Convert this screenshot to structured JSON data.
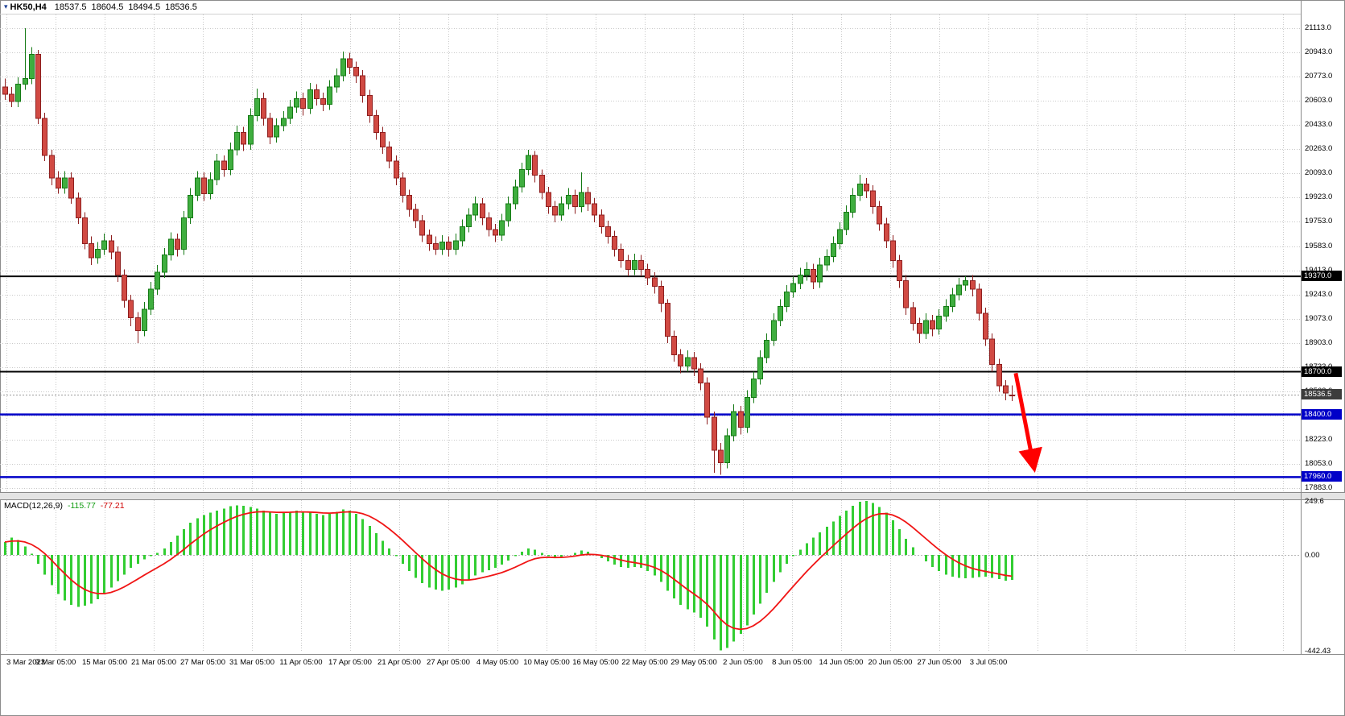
{
  "window": {
    "symbol": "HK50,H4",
    "open": "18537.5",
    "high": "18604.5",
    "low": "18494.5",
    "close": "18536.5"
  },
  "indicator": {
    "label": "MACD(12,26,9)",
    "macd_value": "-115.77",
    "signal_value": "-77.21"
  },
  "colors": {
    "up": "#3fae3f",
    "up_border": "#157a15",
    "down": "#d14a43",
    "down_border": "#8e1f1f",
    "hline_black": "#000000",
    "hline_blue": "#0000c8",
    "macd_hist": "#32cd32",
    "macd_signal": "#f01515",
    "grid": "#c9c9c9",
    "arrow": "#ff0000",
    "badge_current_bg": "#3c3c3c"
  },
  "chart_data": {
    "type": "candlestick_with_macd",
    "symbol": "HK50",
    "timeframe": "H4",
    "title": "HK50,H4 18537.5 18604.5 18494.5 18536.5",
    "price_range": [
      17860,
      21210
    ],
    "macd_range": [
      -442.43,
      249.6
    ],
    "current_price": 18536.5,
    "price_ticks": [
      "21113.0",
      "20943.0",
      "20773.0",
      "20603.0",
      "20433.0",
      "20263.0",
      "20093.0",
      "19923.0",
      "19753.0",
      "19583.0",
      "19413.0",
      "19243.0",
      "19073.0",
      "18903.0",
      "18733.0",
      "18563.0",
      "18393.0",
      "18223.0",
      "18053.0",
      "17883.0"
    ],
    "macd_ticks": [
      "249.6",
      "0.00",
      "-442.43"
    ],
    "time_labels": [
      "3 Mar 2023",
      "9 Mar 05:00",
      "15 Mar 05:00",
      "21 Mar 05:00",
      "27 Mar 05:00",
      "31 Mar 05:00",
      "11 Apr 05:00",
      "17 Apr 05:00",
      "21 Apr 05:00",
      "27 Apr 05:00",
      "4 May 05:00",
      "10 May 05:00",
      "16 May 05:00",
      "22 May 05:00",
      "29 May 05:00",
      "2 Jun 05:00",
      "8 Jun 05:00",
      "14 Jun 05:00",
      "20 Jun 05:00",
      "27 Jun 05:00",
      "3 Jul 05:00"
    ],
    "hlines": [
      {
        "price": 19370,
        "label": "19370.0",
        "color": "black"
      },
      {
        "price": 18700,
        "label": "18700.0",
        "color": "black"
      },
      {
        "price": 18400,
        "label": "18400.0",
        "color": "blue"
      },
      {
        "price": 17960,
        "label": "17960.0",
        "color": "blue"
      }
    ],
    "arrow": {
      "x1_bar": 152.6,
      "price1": 18690,
      "x2_bar": 155.3,
      "price2": 18040
    },
    "candles": [
      [
        20700,
        20760,
        20610,
        20650
      ],
      [
        20650,
        20700,
        20560,
        20600
      ],
      [
        20600,
        20770,
        20560,
        20720
      ],
      [
        20720,
        21113,
        20680,
        20760
      ],
      [
        20760,
        20980,
        20720,
        20930
      ],
      [
        20930,
        20960,
        20440,
        20480
      ],
      [
        20480,
        20520,
        20180,
        20220
      ],
      [
        20220,
        20260,
        20010,
        20060
      ],
      [
        20060,
        20110,
        19950,
        19990
      ],
      [
        19990,
        20110,
        19950,
        20060
      ],
      [
        20060,
        20100,
        19880,
        19920
      ],
      [
        19920,
        19960,
        19740,
        19780
      ],
      [
        19780,
        19820,
        19560,
        19600
      ],
      [
        19600,
        19650,
        19450,
        19500
      ],
      [
        19500,
        19610,
        19460,
        19560
      ],
      [
        19560,
        19670,
        19520,
        19620
      ],
      [
        19620,
        19660,
        19490,
        19540
      ],
      [
        19540,
        19580,
        19330,
        19380
      ],
      [
        19380,
        19420,
        19150,
        19200
      ],
      [
        19200,
        19240,
        19020,
        19080
      ],
      [
        19080,
        19120,
        18900,
        18990
      ],
      [
        18990,
        19190,
        18950,
        19140
      ],
      [
        19140,
        19330,
        19100,
        19280
      ],
      [
        19280,
        19450,
        19240,
        19400
      ],
      [
        19400,
        19570,
        19360,
        19520
      ],
      [
        19520,
        19680,
        19480,
        19630
      ],
      [
        19630,
        19670,
        19510,
        19560
      ],
      [
        19560,
        19830,
        19520,
        19780
      ],
      [
        19780,
        19990,
        19740,
        19940
      ],
      [
        19940,
        20110,
        19900,
        20060
      ],
      [
        20060,
        20100,
        19900,
        19950
      ],
      [
        19950,
        20100,
        19910,
        20050
      ],
      [
        20050,
        20230,
        20010,
        20180
      ],
      [
        20180,
        20220,
        20070,
        20120
      ],
      [
        20120,
        20310,
        20080,
        20260
      ],
      [
        20260,
        20430,
        20220,
        20380
      ],
      [
        20380,
        20420,
        20250,
        20300
      ],
      [
        20300,
        20550,
        20260,
        20500
      ],
      [
        20500,
        20690,
        20460,
        20620
      ],
      [
        20620,
        20660,
        20430,
        20480
      ],
      [
        20480,
        20520,
        20300,
        20350
      ],
      [
        20350,
        20480,
        20310,
        20430
      ],
      [
        20430,
        20530,
        20390,
        20480
      ],
      [
        20480,
        20610,
        20440,
        20560
      ],
      [
        20560,
        20670,
        20520,
        20620
      ],
      [
        20620,
        20660,
        20500,
        20550
      ],
      [
        20550,
        20730,
        20510,
        20680
      ],
      [
        20680,
        20720,
        20570,
        20620
      ],
      [
        20620,
        20660,
        20530,
        20580
      ],
      [
        20580,
        20750,
        20540,
        20700
      ],
      [
        20700,
        20830,
        20660,
        20780
      ],
      [
        20780,
        20950,
        20740,
        20900
      ],
      [
        20900,
        20940,
        20790,
        20840
      ],
      [
        20840,
        20880,
        20730,
        20780
      ],
      [
        20780,
        20820,
        20590,
        20640
      ],
      [
        20640,
        20680,
        20450,
        20500
      ],
      [
        20500,
        20540,
        20330,
        20380
      ],
      [
        20380,
        20420,
        20230,
        20280
      ],
      [
        20280,
        20320,
        20130,
        20180
      ],
      [
        20180,
        20220,
        20010,
        20060
      ],
      [
        20060,
        20100,
        19890,
        19940
      ],
      [
        19940,
        19980,
        19790,
        19840
      ],
      [
        19840,
        19880,
        19710,
        19760
      ],
      [
        19760,
        19800,
        19610,
        19660
      ],
      [
        19660,
        19700,
        19550,
        19600
      ],
      [
        19600,
        19650,
        19520,
        19560
      ],
      [
        19560,
        19660,
        19520,
        19610
      ],
      [
        19610,
        19650,
        19510,
        19560
      ],
      [
        19560,
        19670,
        19520,
        19620
      ],
      [
        19620,
        19770,
        19580,
        19720
      ],
      [
        19720,
        19850,
        19680,
        19800
      ],
      [
        19800,
        19930,
        19760,
        19880
      ],
      [
        19880,
        19920,
        19730,
        19780
      ],
      [
        19780,
        19820,
        19650,
        19700
      ],
      [
        19700,
        19740,
        19610,
        19660
      ],
      [
        19660,
        19810,
        19620,
        19760
      ],
      [
        19760,
        19930,
        19720,
        19880
      ],
      [
        19880,
        20050,
        19840,
        20000
      ],
      [
        20000,
        20170,
        19960,
        20120
      ],
      [
        20120,
        20260,
        20080,
        20220
      ],
      [
        20220,
        20250,
        20030,
        20080
      ],
      [
        20080,
        20120,
        19910,
        19960
      ],
      [
        19960,
        20000,
        19810,
        19860
      ],
      [
        19860,
        19900,
        19750,
        19800
      ],
      [
        19800,
        19930,
        19760,
        19880
      ],
      [
        19880,
        19990,
        19840,
        19940
      ],
      [
        19940,
        19980,
        19810,
        19860
      ],
      [
        19860,
        20100,
        19820,
        19960
      ],
      [
        19960,
        20000,
        19830,
        19880
      ],
      [
        19880,
        19920,
        19750,
        19800
      ],
      [
        19800,
        19840,
        19670,
        19720
      ],
      [
        19720,
        19760,
        19600,
        19650
      ],
      [
        19650,
        19690,
        19510,
        19560
      ],
      [
        19560,
        19600,
        19430,
        19480
      ],
      [
        19480,
        19520,
        19370,
        19420
      ],
      [
        19420,
        19530,
        19380,
        19480
      ],
      [
        19480,
        19520,
        19370,
        19420
      ],
      [
        19420,
        19460,
        19310,
        19360
      ],
      [
        19360,
        19400,
        19250,
        19300
      ],
      [
        19300,
        19340,
        19120,
        19180
      ],
      [
        19180,
        19210,
        18900,
        18950
      ],
      [
        18950,
        18990,
        18770,
        18820
      ],
      [
        18820,
        18860,
        18690,
        18740
      ],
      [
        18740,
        18850,
        18700,
        18800
      ],
      [
        18800,
        18840,
        18670,
        18720
      ],
      [
        18720,
        18760,
        18570,
        18620
      ],
      [
        18620,
        18660,
        18330,
        18380
      ],
      [
        18380,
        18420,
        17990,
        18150
      ],
      [
        18150,
        18200,
        17975,
        18060
      ],
      [
        18060,
        18300,
        18020,
        18250
      ],
      [
        18250,
        18470,
        18210,
        18420
      ],
      [
        18420,
        18460,
        18260,
        18310
      ],
      [
        18310,
        18570,
        18270,
        18520
      ],
      [
        18520,
        18700,
        18480,
        18650
      ],
      [
        18650,
        18850,
        18610,
        18800
      ],
      [
        18800,
        18970,
        18760,
        18920
      ],
      [
        18920,
        19110,
        18880,
        19060
      ],
      [
        19060,
        19210,
        19020,
        19160
      ],
      [
        19160,
        19310,
        19120,
        19260
      ],
      [
        19260,
        19370,
        19220,
        19320
      ],
      [
        19320,
        19430,
        19280,
        19380
      ],
      [
        19380,
        19470,
        19340,
        19420
      ],
      [
        19420,
        19460,
        19280,
        19330
      ],
      [
        19330,
        19500,
        19290,
        19450
      ],
      [
        19450,
        19560,
        19410,
        19510
      ],
      [
        19510,
        19650,
        19470,
        19600
      ],
      [
        19600,
        19750,
        19560,
        19700
      ],
      [
        19700,
        19870,
        19660,
        19820
      ],
      [
        19820,
        19990,
        19780,
        19940
      ],
      [
        19940,
        20085,
        19900,
        20020
      ],
      [
        20020,
        20060,
        19920,
        19970
      ],
      [
        19970,
        20010,
        19810,
        19860
      ],
      [
        19860,
        19900,
        19690,
        19740
      ],
      [
        19740,
        19780,
        19570,
        19620
      ],
      [
        19620,
        19660,
        19430,
        19480
      ],
      [
        19480,
        19520,
        19290,
        19340
      ],
      [
        19340,
        19380,
        19100,
        19150
      ],
      [
        19150,
        19190,
        18990,
        19040
      ],
      [
        19040,
        19080,
        18900,
        18970
      ],
      [
        18970,
        19110,
        18930,
        19060
      ],
      [
        19060,
        19100,
        18950,
        19000
      ],
      [
        19000,
        19140,
        18960,
        19090
      ],
      [
        19090,
        19210,
        19050,
        19160
      ],
      [
        19160,
        19290,
        19120,
        19240
      ],
      [
        19240,
        19360,
        19200,
        19310
      ],
      [
        19310,
        19372,
        19270,
        19340
      ],
      [
        19340,
        19380,
        19230,
        19280
      ],
      [
        19280,
        19320,
        19060,
        19110
      ],
      [
        19110,
        19150,
        18880,
        18930
      ],
      [
        18930,
        18970,
        18700,
        18750
      ],
      [
        18750,
        18790,
        18560,
        18600
      ],
      [
        18600,
        18640,
        18500,
        18550
      ],
      [
        18537.5,
        18604.5,
        18494.5,
        18536.5
      ]
    ],
    "macd": [
      60,
      80,
      70,
      40,
      5,
      -40,
      -90,
      -140,
      -180,
      -210,
      -230,
      -240,
      -235,
      -225,
      -205,
      -180,
      -150,
      -120,
      -90,
      -60,
      -40,
      -20,
      -5,
      10,
      30,
      60,
      90,
      120,
      150,
      170,
      185,
      195,
      205,
      215,
      225,
      230,
      228,
      222,
      215,
      205,
      195,
      190,
      195,
      200,
      205,
      200,
      195,
      190,
      185,
      190,
      200,
      210,
      205,
      190,
      165,
      135,
      100,
      65,
      30,
      -5,
      -40,
      -75,
      -105,
      -130,
      -150,
      -160,
      -165,
      -160,
      -150,
      -135,
      -115,
      -95,
      -80,
      -70,
      -60,
      -45,
      -25,
      -5,
      15,
      30,
      25,
      10,
      -5,
      -15,
      -10,
      0,
      10,
      20,
      15,
      0,
      -15,
      -30,
      -45,
      -55,
      -60,
      -55,
      -60,
      -75,
      -95,
      -125,
      -165,
      -200,
      -230,
      -250,
      -265,
      -290,
      -330,
      -390,
      -440,
      -430,
      -400,
      -365,
      -325,
      -275,
      -225,
      -175,
      -125,
      -80,
      -40,
      -5,
      25,
      55,
      80,
      105,
      130,
      155,
      180,
      205,
      228,
      245,
      249,
      240,
      222,
      195,
      160,
      120,
      75,
      35,
      0,
      -30,
      -55,
      -75,
      -90,
      -100,
      -105,
      -108,
      -106,
      -102,
      -100,
      -105,
      -112,
      -118,
      -115.77
    ]
  }
}
